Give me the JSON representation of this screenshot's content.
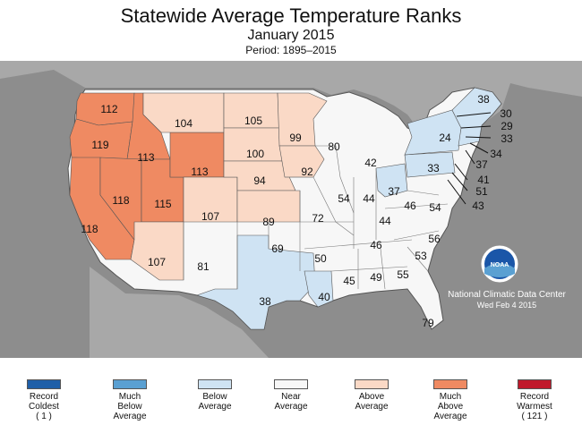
{
  "header": {
    "title": "Statewide Average Temperature Ranks",
    "subtitle": "January 2015",
    "period": "Period: 1895–2015"
  },
  "credit": {
    "agency": "National Climatic Data Center",
    "date": "Wed Feb  4 2015",
    "logo_text": "NOAA"
  },
  "colors": {
    "record_coldest": "#1f5fa8",
    "much_below": "#5aa0d2",
    "below": "#cfe3f3",
    "near": "#f7f7f7",
    "above": "#fad9c6",
    "much_above": "#ef8a62",
    "record_warmest": "#c0192b",
    "land_outside": "#a8a8a8",
    "ocean": "#8d8d8d"
  },
  "legend": [
    {
      "lines": [
        "Record",
        "Coldest",
        "( 1 )"
      ],
      "color": "#1f5fa8"
    },
    {
      "lines": [
        "Much",
        "Below",
        "Average"
      ],
      "color": "#5aa0d2"
    },
    {
      "lines": [
        "Below",
        "Average",
        ""
      ],
      "color": "#cfe3f3"
    },
    {
      "lines": [
        "Near",
        "Average",
        ""
      ],
      "color": "#f7f7f7"
    },
    {
      "lines": [
        "Above",
        "Average",
        ""
      ],
      "color": "#fad9c6"
    },
    {
      "lines": [
        "Much",
        "Above",
        "Average"
      ],
      "color": "#ef8a62"
    },
    {
      "lines": [
        "Record",
        "Warmest",
        "( 121 )"
      ],
      "color": "#c0192b"
    }
  ],
  "ranks": {
    "WA": "112",
    "OR": "119",
    "CA": "118",
    "ID": "113",
    "NV": "118",
    "UT": "115",
    "AZ": "107",
    "MT": "104",
    "WY": "113",
    "CO": "107",
    "NM": "81",
    "ND": "105",
    "SD": "100",
    "NE": "94",
    "KS": "89",
    "OK": "69",
    "TX": "38",
    "MN": "99",
    "IA": "92",
    "MO": "72",
    "AR": "50",
    "LA": "40",
    "WI": "80",
    "IL": "54",
    "MI": "42",
    "IN": "44",
    "OH": "37",
    "KY": "44",
    "TN": "46",
    "MS": "45",
    "AL": "49",
    "GA": "55",
    "FL": "79",
    "SC": "53",
    "NC": "56",
    "VA": "54",
    "WV": "46",
    "PA": "33",
    "NY": "24",
    "ME": "38",
    "VT": "30",
    "NH": "29",
    "MA": "33",
    "RI": "34",
    "CT": "37",
    "NJ": "41",
    "DE": "51",
    "MD": "43"
  }
}
